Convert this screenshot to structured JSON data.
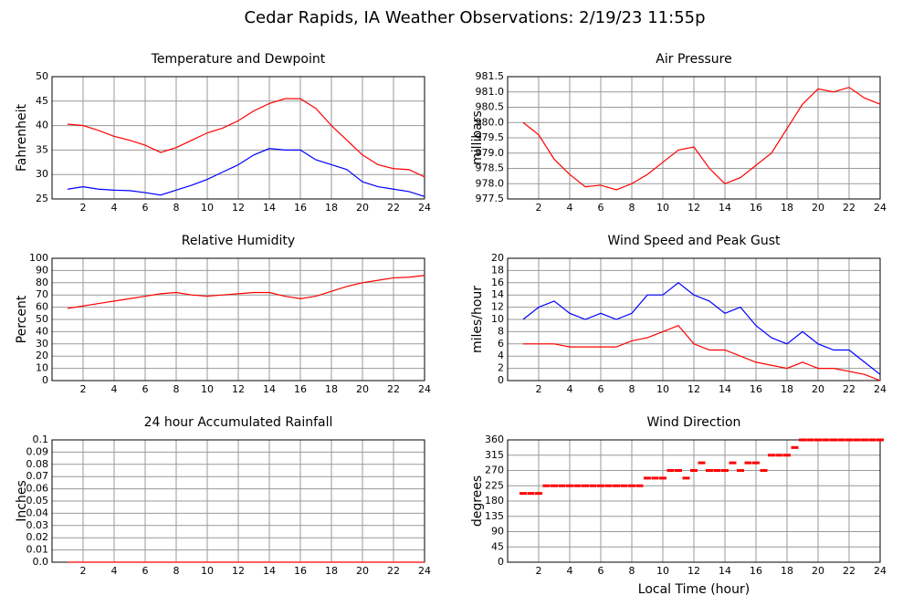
{
  "title": "Cedar Rapids, IA Weather Observations: 2/19/23 11:55p",
  "chart_data": [
    {
      "type": "line",
      "title": "Temperature and Dewpoint",
      "ylabel": "Fahrenheit",
      "x": [
        1,
        2,
        3,
        4,
        5,
        6,
        7,
        8,
        9,
        10,
        11,
        12,
        13,
        14,
        15,
        16,
        17,
        18,
        19,
        20,
        21,
        22,
        23,
        24
      ],
      "series": [
        {
          "color": "#ff0000",
          "values": [
            40.3,
            40,
            39,
            37.8,
            37,
            36,
            34.5,
            35.5,
            37,
            38.5,
            39.5,
            41,
            43,
            44.5,
            45.5,
            45.5,
            43.5,
            40,
            37,
            34,
            32,
            31.2,
            31,
            29.5
          ]
        },
        {
          "color": "#0000ff",
          "values": [
            27,
            27.5,
            27,
            26.8,
            26.7,
            26.3,
            25.8,
            26.8,
            27.8,
            29,
            30.5,
            32,
            34,
            35.3,
            35,
            35,
            33,
            32,
            31,
            28.5,
            27.5,
            27,
            26.5,
            25.5
          ]
        }
      ],
      "xlim": [
        0,
        24
      ],
      "xticks": [
        2,
        4,
        6,
        8,
        10,
        12,
        14,
        16,
        18,
        20,
        22,
        24
      ],
      "ylim": [
        25,
        50
      ],
      "yticks": [
        25,
        30,
        35,
        40,
        45,
        50
      ],
      "grid": true
    },
    {
      "type": "line",
      "title": "Air Pressure",
      "ylabel": "millibars",
      "x": [
        1,
        2,
        3,
        4,
        5,
        6,
        7,
        8,
        9,
        10,
        11,
        12,
        13,
        14,
        15,
        16,
        17,
        18,
        19,
        20,
        21,
        22,
        23,
        24
      ],
      "series": [
        {
          "color": "#ff0000",
          "values": [
            980,
            979.6,
            978.8,
            978.3,
            977.9,
            977.95,
            977.8,
            978,
            978.3,
            978.7,
            979.1,
            979.2,
            978.5,
            978,
            978.2,
            978.6,
            979,
            979.8,
            980.6,
            981.1,
            981,
            981.15,
            980.8,
            980.6
          ]
        }
      ],
      "xlim": [
        0,
        24
      ],
      "xticks": [
        2,
        4,
        6,
        8,
        10,
        12,
        14,
        16,
        18,
        20,
        22,
        24
      ],
      "ylim": [
        977.5,
        981.5
      ],
      "yticks": [
        977.5,
        {
          "value": 978,
          "label": "978.0"
        },
        978.5,
        {
          "value": 979,
          "label": "979.0"
        },
        979.5,
        {
          "value": 980,
          "label": "980.0"
        },
        980.5,
        {
          "value": 981,
          "label": "981.0"
        },
        981.5
      ],
      "grid": true
    },
    {
      "type": "line",
      "title": "Relative Humidity",
      "ylabel": "Percent",
      "x": [
        1,
        2,
        3,
        4,
        5,
        6,
        7,
        8,
        9,
        10,
        11,
        12,
        13,
        14,
        15,
        16,
        17,
        18,
        19,
        20,
        21,
        22,
        23,
        24
      ],
      "series": [
        {
          "color": "#ff0000",
          "values": [
            59,
            61,
            63,
            65,
            67,
            69,
            71,
            72,
            70,
            69,
            70,
            71,
            72,
            72,
            69,
            67,
            69,
            73,
            77,
            80,
            82,
            84,
            84.5,
            86
          ]
        }
      ],
      "xlim": [
        0,
        24
      ],
      "xticks": [
        2,
        4,
        6,
        8,
        10,
        12,
        14,
        16,
        18,
        20,
        22,
        24
      ],
      "ylim": [
        0,
        100
      ],
      "yticks": [
        0,
        10,
        20,
        30,
        40,
        50,
        60,
        70,
        80,
        90,
        100
      ],
      "grid": true
    },
    {
      "type": "line",
      "title": "Wind Speed and Peak Gust",
      "ylabel": "miles/hour",
      "x": [
        1,
        2,
        3,
        4,
        5,
        6,
        7,
        8,
        9,
        10,
        11,
        12,
        13,
        14,
        15,
        16,
        17,
        18,
        19,
        20,
        21,
        22,
        23,
        24
      ],
      "series": [
        {
          "color": "#0000ff",
          "values": [
            10,
            12,
            13,
            11,
            10,
            11,
            10,
            11,
            14,
            14,
            16,
            14,
            13,
            11,
            12,
            9,
            7,
            6,
            8,
            6,
            5,
            5,
            3,
            1
          ]
        },
        {
          "color": "#ff0000",
          "values": [
            6,
            6,
            6,
            5.5,
            5.5,
            5.5,
            5.5,
            6.5,
            7,
            8,
            9,
            6,
            5,
            5,
            4,
            3,
            2.5,
            2,
            3,
            2,
            2,
            1.5,
            1,
            0
          ]
        }
      ],
      "xlim": [
        0,
        24
      ],
      "xticks": [
        2,
        4,
        6,
        8,
        10,
        12,
        14,
        16,
        18,
        20,
        22,
        24
      ],
      "ylim": [
        0,
        20
      ],
      "yticks": [
        0,
        2,
        4,
        6,
        8,
        10,
        12,
        14,
        16,
        18,
        20
      ],
      "grid": true
    },
    {
      "type": "line",
      "title": "24 hour Accumulated Rainfall",
      "ylabel": "Inches",
      "x": [
        1,
        24
      ],
      "series": [
        {
          "color": "#ff0000",
          "values": [
            0,
            0
          ]
        }
      ],
      "xlim": [
        0,
        24
      ],
      "xticks": [
        2,
        4,
        6,
        8,
        10,
        12,
        14,
        16,
        18,
        20,
        22,
        24
      ],
      "ylim": [
        0,
        0.1
      ],
      "yticks": [
        {
          "value": 0,
          "label": "0.0"
        },
        0.01,
        0.02,
        0.03,
        0.04,
        0.05,
        0.06,
        0.07,
        0.08,
        0.09,
        0.1
      ],
      "grid": true
    },
    {
      "type": "scatter",
      "title": "Wind Direction",
      "ylabel": "degrees",
      "xlabel": "Local Time (hour)",
      "x": [
        1,
        1.5,
        2,
        2.5,
        3,
        3.5,
        4,
        4.5,
        5,
        5.5,
        6,
        6.5,
        7,
        7.5,
        8,
        8.5,
        9,
        9.5,
        10,
        10.5,
        11,
        11.5,
        12,
        12.5,
        13,
        13.5,
        14,
        14.5,
        15,
        15.5,
        16,
        16.5,
        17,
        17.5,
        18,
        18.5,
        19,
        19.5,
        20,
        20.5,
        21,
        21.5,
        22,
        22.5,
        23,
        23.5,
        24
      ],
      "series": [
        {
          "color": "#ff0000",
          "values": [
            202.5,
            202.5,
            202.5,
            225,
            225,
            225,
            225,
            225,
            225,
            225,
            225,
            225,
            225,
            225,
            225,
            225,
            247.5,
            247.5,
            247.5,
            270,
            270,
            247.5,
            270,
            292.5,
            270,
            270,
            270,
            292.5,
            270,
            292.5,
            292.5,
            270,
            315,
            315,
            315,
            337.5,
            360,
            360,
            360,
            360,
            360,
            360,
            360,
            360,
            360,
            360,
            360
          ]
        }
      ],
      "xlim": [
        0,
        24
      ],
      "xticks": [
        2,
        4,
        6,
        8,
        10,
        12,
        14,
        16,
        18,
        20,
        22,
        24
      ],
      "ylim": [
        0,
        360
      ],
      "yticks": [
        0,
        45,
        90,
        135,
        180,
        225,
        270,
        315,
        360
      ],
      "grid": true
    }
  ]
}
